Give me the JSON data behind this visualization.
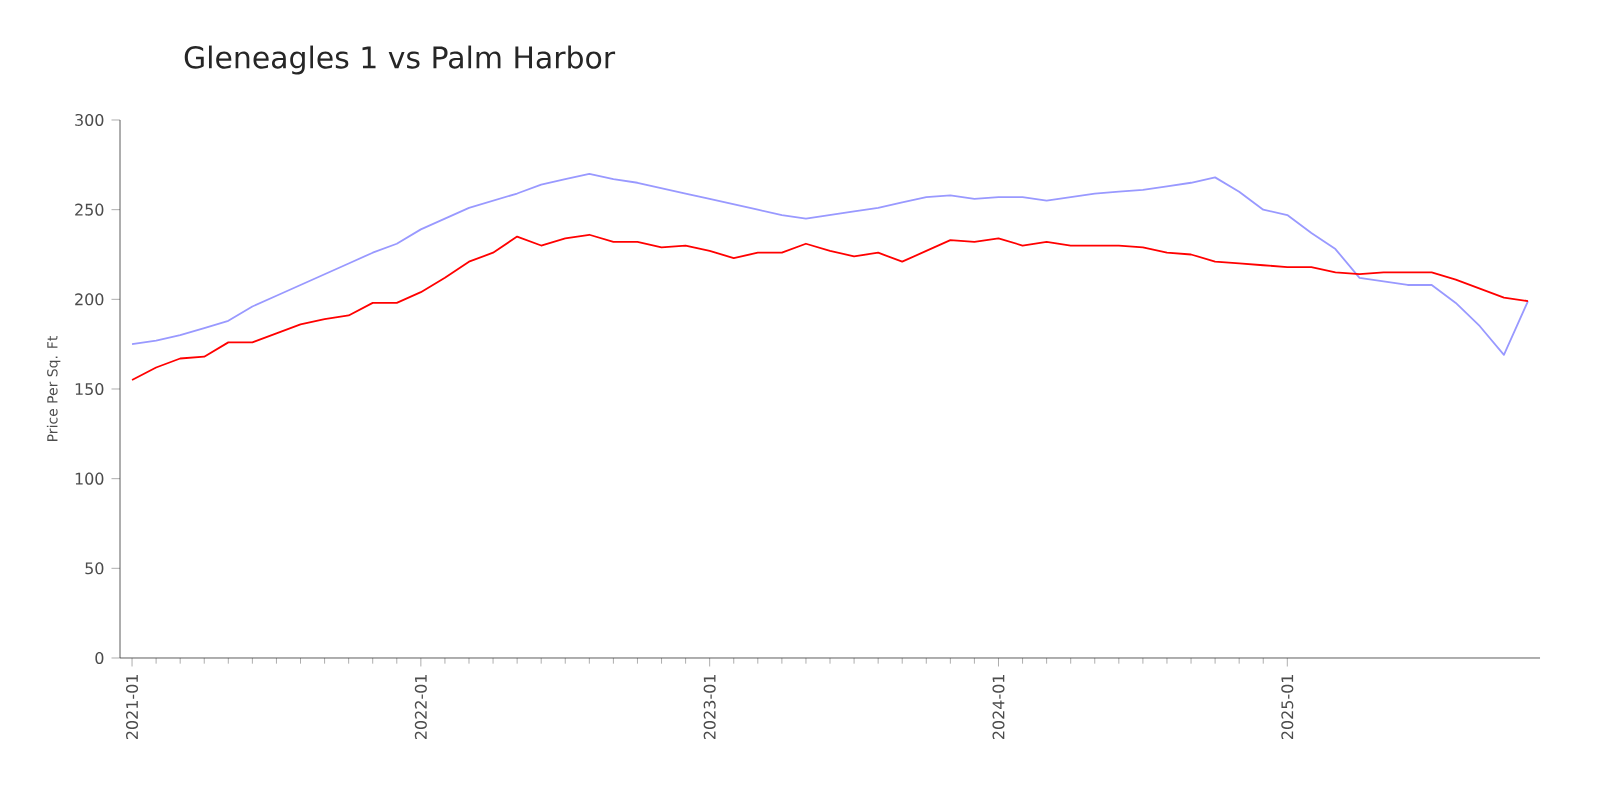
{
  "chart_data": {
    "type": "line",
    "title": "Gleneagles 1 vs Palm Harbor",
    "ylabel": "Price Per Sq. Ft",
    "x": [
      "2021-01",
      "2021-02",
      "2021-03",
      "2021-04",
      "2021-05",
      "2021-06",
      "2021-07",
      "2021-08",
      "2021-09",
      "2021-10",
      "2021-11",
      "2021-12",
      "2022-01",
      "2022-02",
      "2022-03",
      "2022-04",
      "2022-05",
      "2022-06",
      "2022-07",
      "2022-08",
      "2022-09",
      "2022-10",
      "2022-11",
      "2022-12",
      "2023-01",
      "2023-02",
      "2023-03",
      "2023-04",
      "2023-05",
      "2023-06",
      "2023-07",
      "2023-08",
      "2023-09",
      "2023-10",
      "2023-11",
      "2023-12",
      "2024-01",
      "2024-02",
      "2024-03",
      "2024-04",
      "2024-05",
      "2024-06",
      "2024-07",
      "2024-08",
      "2024-09",
      "2024-10",
      "2024-11",
      "2024-12",
      "2025-01",
      "2025-02",
      "2025-03",
      "2025-04",
      "2025-05",
      "2025-06",
      "2025-07",
      "2025-08",
      "2025-09",
      "2025-10",
      "2025-11"
    ],
    "series": [
      {
        "color": "#9999ff",
        "values": [
          175,
          177,
          180,
          184,
          188,
          196,
          202,
          208,
          214,
          220,
          226,
          231,
          239,
          245,
          251,
          255,
          259,
          264,
          267,
          270,
          267,
          265,
          262,
          259,
          256,
          253,
          250,
          247,
          245,
          247,
          249,
          251,
          254,
          257,
          258,
          256,
          257,
          257,
          255,
          257,
          259,
          260,
          261,
          263,
          265,
          268,
          260,
          250,
          247,
          237,
          228,
          212,
          210,
          208,
          208,
          198,
          185,
          169,
          199
        ]
      },
      {
        "color": "#ff0000",
        "values": [
          155,
          162,
          167,
          168,
          176,
          176,
          181,
          186,
          189,
          191,
          198,
          198,
          204,
          212,
          221,
          226,
          235,
          230,
          234,
          236,
          232,
          232,
          229,
          230,
          227,
          223,
          226,
          226,
          231,
          227,
          224,
          226,
          221,
          227,
          233,
          232,
          234,
          230,
          232,
          230,
          230,
          230,
          229,
          226,
          225,
          221,
          220,
          219,
          218,
          218,
          215,
          214,
          215,
          215,
          215,
          211,
          206,
          201,
          199
        ]
      }
    ],
    "xlim": [
      "2020-12-16",
      "2025-11-16"
    ],
    "xticks": [
      "2021-01",
      "2022-01",
      "2023-01",
      "2024-01",
      "2025-01"
    ],
    "ylim": [
      0,
      300
    ],
    "yticks": [
      0,
      50,
      100,
      150,
      200,
      250,
      300
    ],
    "marker": "none",
    "line_style": "solid"
  }
}
